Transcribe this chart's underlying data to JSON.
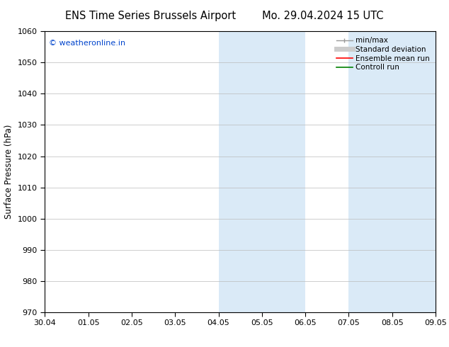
{
  "title_left": "ENS Time Series Brussels Airport",
  "title_right": "Mo. 29.04.2024 15 UTC",
  "ylabel": "Surface Pressure (hPa)",
  "ylim": [
    970,
    1060
  ],
  "yticks": [
    970,
    980,
    990,
    1000,
    1010,
    1020,
    1030,
    1040,
    1050,
    1060
  ],
  "x_labels": [
    "30.04",
    "01.05",
    "02.05",
    "03.05",
    "04.05",
    "05.05",
    "06.05",
    "07.05",
    "08.05",
    "09.05"
  ],
  "x_values": [
    0,
    1,
    2,
    3,
    4,
    5,
    6,
    7,
    8,
    9
  ],
  "shaded_regions": [
    {
      "xmin": 4,
      "xmax": 5,
      "color": "#daeaf7"
    },
    {
      "xmin": 5,
      "xmax": 6,
      "color": "#daeaf7"
    },
    {
      "xmin": 7,
      "xmax": 8,
      "color": "#daeaf7"
    },
    {
      "xmin": 8,
      "xmax": 9,
      "color": "#daeaf7"
    }
  ],
  "legend_entries": [
    {
      "label": "min/max",
      "color": "#999999",
      "lw": 1.0
    },
    {
      "label": "Standard deviation",
      "color": "#cccccc",
      "lw": 5
    },
    {
      "label": "Ensemble mean run",
      "color": "red",
      "lw": 1.2
    },
    {
      "label": "Controll run",
      "color": "green",
      "lw": 1.2
    }
  ],
  "watermark": "© weatheronline.in",
  "watermark_color": "#0044cc",
  "background_color": "#ffffff",
  "grid_color": "#bbbbbb",
  "title_fontsize": 10.5,
  "tick_fontsize": 8,
  "ylabel_fontsize": 8.5,
  "legend_fontsize": 7.5
}
